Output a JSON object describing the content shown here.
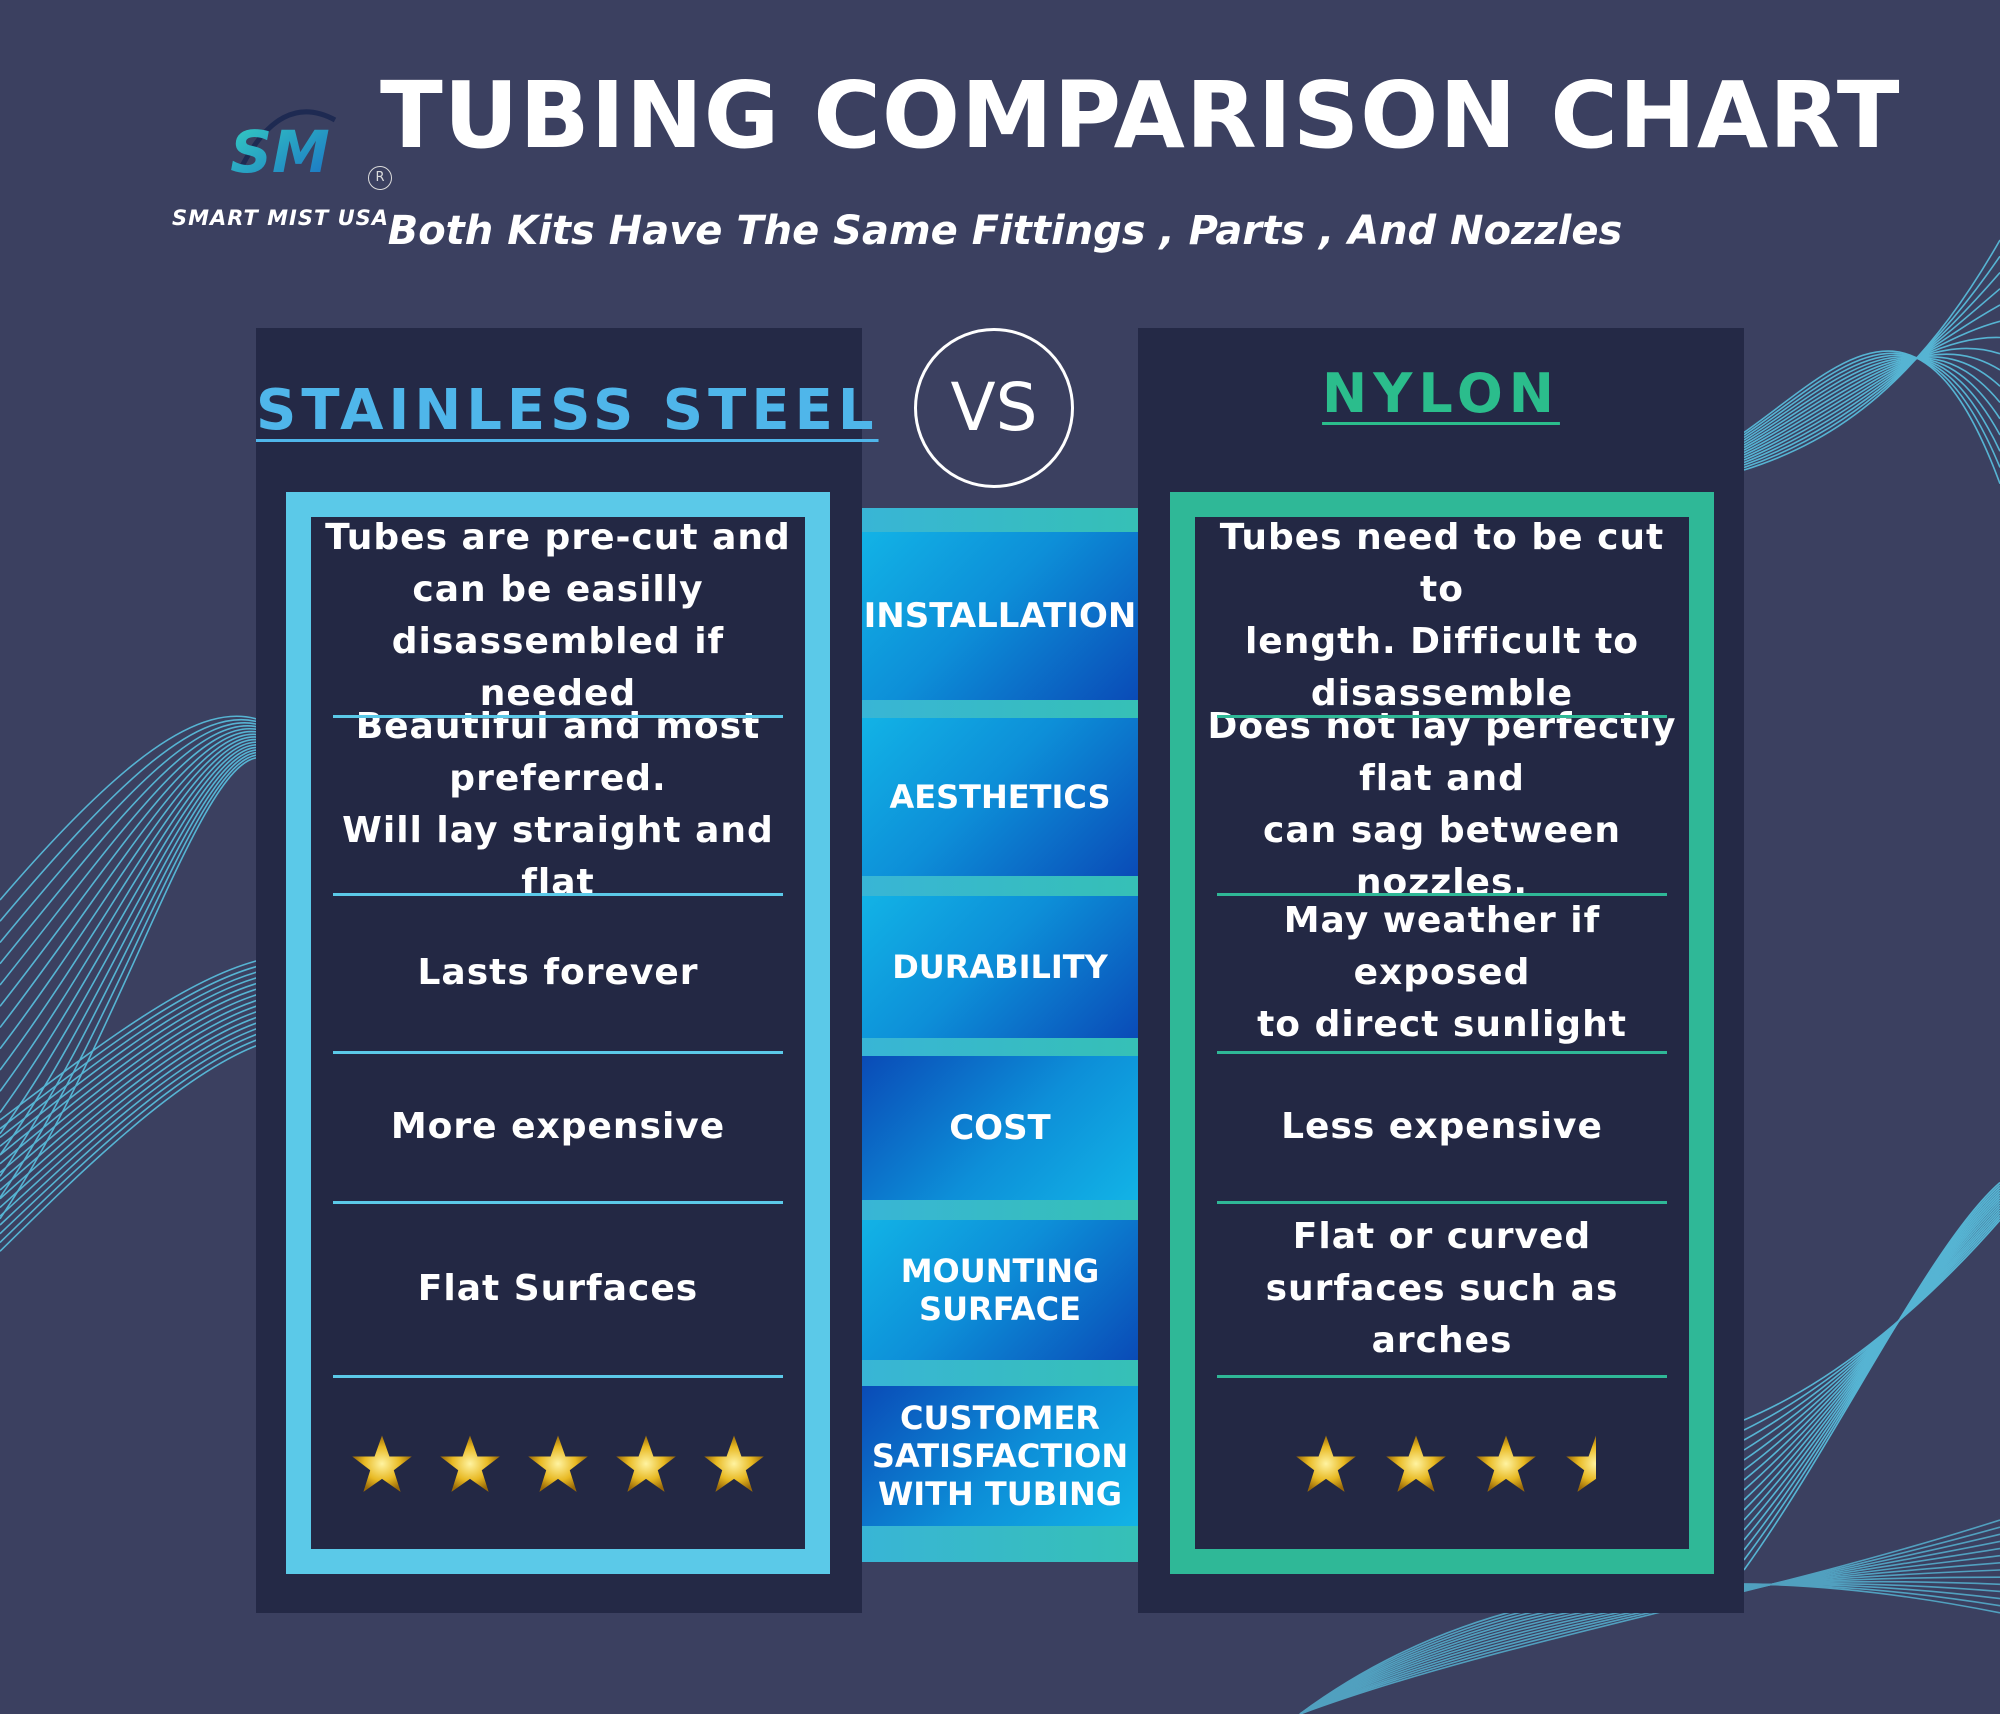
{
  "brand": {
    "name": "SMART MIST USA",
    "mark": "SM",
    "registered": "R"
  },
  "header": {
    "title": "TUBING COMPARISON CHART",
    "subtitle": "Both Kits Have The Same Fittings , Parts , And Nozzles"
  },
  "vs_label": "VS",
  "left": {
    "heading": "STAINLESS STEEL",
    "accent": "#5bc9e8",
    "cells": [
      "Tubes are pre-cut and\ncan be easilly\ndisassembled if needed",
      "Beautiful and most\npreferred.\nWill lay straight and flat",
      "Lasts forever",
      "More expensive",
      "Flat Surfaces"
    ],
    "rating": 5
  },
  "right": {
    "heading": "NYLON",
    "accent": "#2fb897",
    "cells": [
      "Tubes need to be cut to\nlength.  Difficult to\ndisassemble",
      "Does not lay perfectly\nflat and\ncan sag between nozzles.",
      "May weather if exposed\nto direct sunlight",
      "Less expensive",
      "Flat or curved\nsurfaces such as\narches"
    ],
    "rating": 3.5
  },
  "criteria": [
    "INSTALLATION",
    "AESTHETICS",
    "DURABILITY",
    "COST",
    "MOUNTING\nSURFACE",
    "CUSTOMER\nSATISFACTION\nWITH TUBING"
  ],
  "colors": {
    "background": "#3b4060",
    "panel": "#242946",
    "star_gold": "#e8b923",
    "wave_lines": "#5bc9e8"
  }
}
